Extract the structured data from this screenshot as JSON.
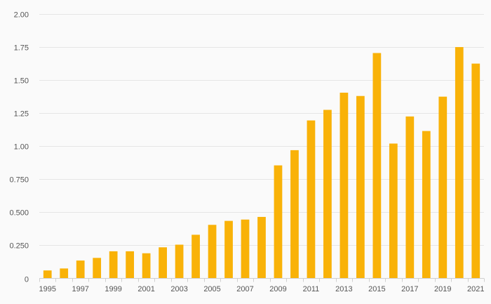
{
  "chart_data": {
    "type": "bar",
    "title": "",
    "xlabel": "",
    "ylabel": "",
    "ylim": [
      0,
      2.0
    ],
    "bar_color": "#f9b208",
    "grid": true,
    "y_ticks": [
      {
        "value": 0,
        "label": "0"
      },
      {
        "value": 0.25,
        "label": "0.250"
      },
      {
        "value": 0.5,
        "label": "0.500"
      },
      {
        "value": 0.75,
        "label": "0.750"
      },
      {
        "value": 1.0,
        "label": "1.00"
      },
      {
        "value": 1.25,
        "label": "1.25"
      },
      {
        "value": 1.5,
        "label": "1.50"
      },
      {
        "value": 1.75,
        "label": "1.75"
      },
      {
        "value": 2.0,
        "label": "2.00"
      }
    ],
    "x_tick_labels": [
      "1995",
      "1997",
      "1999",
      "2001",
      "2003",
      "2005",
      "2007",
      "2009",
      "2011",
      "2013",
      "2015",
      "2017",
      "2019",
      "2021"
    ],
    "categories": [
      "1995",
      "1996",
      "1997",
      "1998",
      "1999",
      "2000",
      "2001",
      "2002",
      "2003",
      "2004",
      "2005",
      "2006",
      "2007",
      "2008",
      "2009",
      "2010",
      "2011",
      "2012",
      "2013",
      "2014",
      "2015",
      "2016",
      "2017",
      "2018",
      "2019",
      "2020",
      "2021"
    ],
    "values": [
      0.06,
      0.075,
      0.135,
      0.155,
      0.205,
      0.205,
      0.19,
      0.235,
      0.255,
      0.33,
      0.405,
      0.435,
      0.445,
      0.465,
      0.855,
      0.97,
      1.195,
      1.275,
      1.405,
      1.38,
      1.705,
      1.02,
      1.225,
      1.115,
      1.375,
      1.75,
      1.625
    ]
  }
}
